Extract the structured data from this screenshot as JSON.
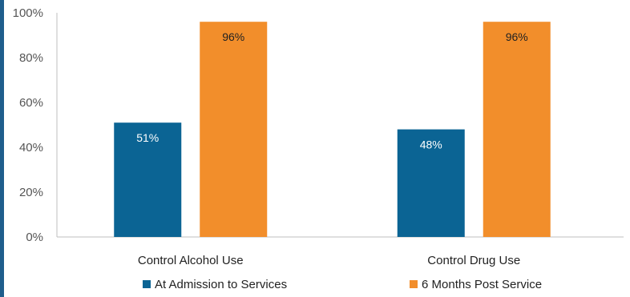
{
  "chart_data": {
    "type": "bar",
    "categories": [
      "Control Alcohol Use",
      "Control Drug Use"
    ],
    "series": [
      {
        "name": "At Admission to Services",
        "values": [
          51,
          48
        ],
        "color": "#0b6494",
        "label_color": "#ffffff"
      },
      {
        "name": "6 Months Post Service",
        "values": [
          96,
          96
        ],
        "color": "#f28e2b",
        "label_color": "#222222"
      }
    ],
    "ylim": [
      0,
      100
    ],
    "yticks": [
      0,
      20,
      40,
      60,
      80,
      100
    ],
    "tick_suffix": "%",
    "value_suffix": "%",
    "grid": false,
    "legend_position": "bottom",
    "title": "",
    "xlabel": "",
    "ylabel": ""
  }
}
